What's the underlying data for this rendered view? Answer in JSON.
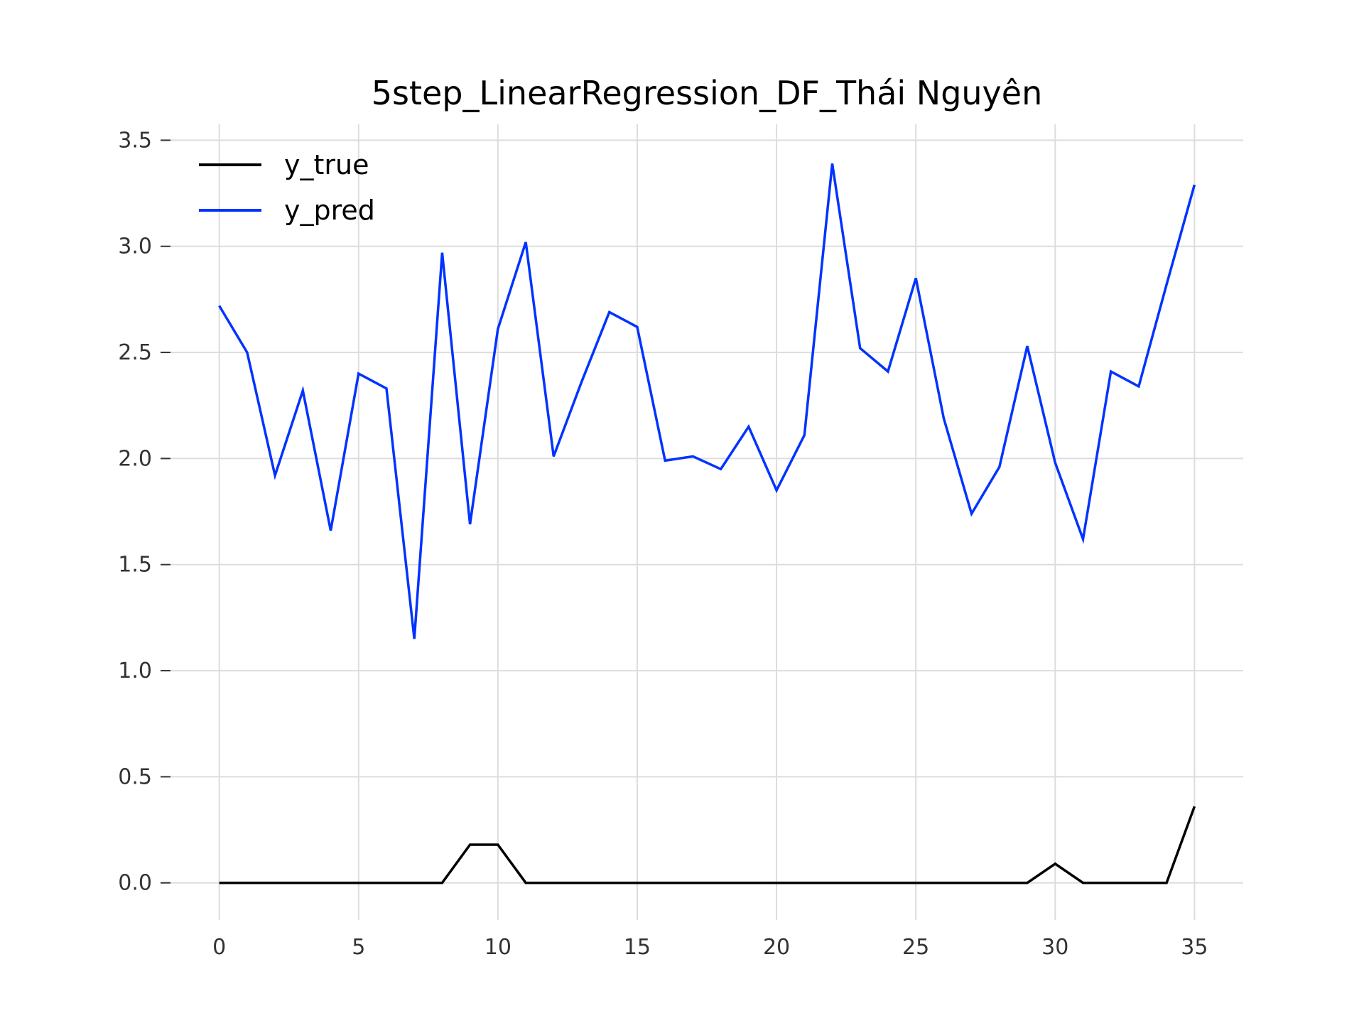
{
  "chart_data": {
    "type": "line",
    "title": "5step_LinearRegression_DF_Thái Nguyên",
    "xlabel": "",
    "ylabel": "",
    "xlim": [
      -1.75,
      36.75
    ],
    "ylim": [
      -0.175,
      3.575
    ],
    "xticks": [
      0,
      5,
      10,
      15,
      20,
      25,
      30,
      35
    ],
    "yticks": [
      0.0,
      0.5,
      1.0,
      1.5,
      2.0,
      2.5,
      3.0,
      3.5
    ],
    "xtick_labels": [
      "0",
      "5",
      "10",
      "15",
      "20",
      "25",
      "30",
      "35"
    ],
    "ytick_labels": [
      "0.0",
      "0.5",
      "1.0",
      "1.5",
      "2.0",
      "2.5",
      "3.0",
      "3.5"
    ],
    "grid": true,
    "legend_position": "top-left",
    "x": [
      0,
      1,
      2,
      3,
      4,
      5,
      6,
      7,
      8,
      9,
      10,
      11,
      12,
      13,
      14,
      15,
      16,
      17,
      18,
      19,
      20,
      21,
      22,
      23,
      24,
      25,
      26,
      27,
      28,
      29,
      30,
      31,
      32,
      33,
      34,
      35
    ],
    "series": [
      {
        "name": "y_true",
        "color": "#000000",
        "values": [
          0,
          0,
          0,
          0,
          0,
          0,
          0,
          0,
          0,
          0.18,
          0.18,
          0,
          0,
          0,
          0,
          0,
          0,
          0,
          0,
          0,
          0,
          0,
          0,
          0,
          0,
          0,
          0,
          0,
          0,
          0,
          0.09,
          0,
          0,
          0,
          0,
          0.36
        ]
      },
      {
        "name": "y_pred",
        "color": "#0033ff",
        "values": [
          2.72,
          2.5,
          1.92,
          2.32,
          1.66,
          2.4,
          2.33,
          1.15,
          2.97,
          1.69,
          2.61,
          3.02,
          2.01,
          2.36,
          2.69,
          2.62,
          1.99,
          2.01,
          1.95,
          2.15,
          1.85,
          2.11,
          3.39,
          2.52,
          2.41,
          2.85,
          2.19,
          1.74,
          1.96,
          2.53,
          1.98,
          1.62,
          2.41,
          2.34,
          2.82,
          3.29
        ]
      }
    ]
  }
}
